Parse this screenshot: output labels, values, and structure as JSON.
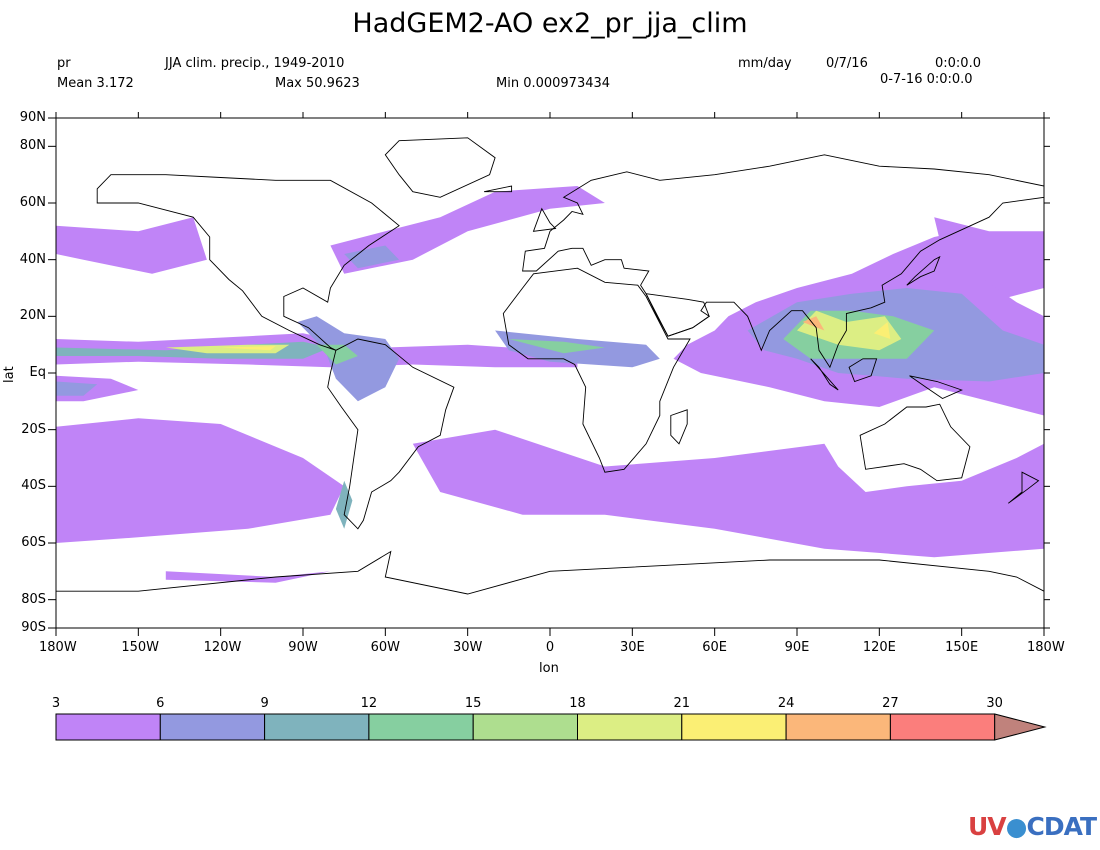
{
  "title": "HadGEM2-AO ex2_pr_jja_clim",
  "header": {
    "variable": "pr",
    "long_name": "JJA clim. precip., 1949-2010",
    "units": "mm/day",
    "date": "0/7/16",
    "time": "0:0:0.0",
    "date_time": "0-7-16 0:0:0.0",
    "mean": "Mean 3.172",
    "max": "Max 50.9623",
    "min": "Min 0.000973434"
  },
  "axes": {
    "xlabel": "lon",
    "ylabel": "lat",
    "x_ticks": [
      "180W",
      "150W",
      "120W",
      "90W",
      "60W",
      "30W",
      "0",
      "30E",
      "60E",
      "90E",
      "120E",
      "150E",
      "180W"
    ],
    "y_ticks": [
      "90N",
      "80N",
      "60N",
      "40N",
      "20N",
      "Eq",
      "20S",
      "40S",
      "60S",
      "80S",
      "90S"
    ]
  },
  "chart_data": {
    "type": "heatmap",
    "projection": "equirectangular",
    "xlim": [
      -180,
      180
    ],
    "ylim": [
      -90,
      90
    ],
    "levels": [
      3,
      6,
      9,
      12,
      15,
      18,
      21,
      24,
      27,
      30
    ],
    "level_labels": [
      "3",
      "6",
      "9",
      "12",
      "15",
      "18",
      "21",
      "24",
      "27",
      "30"
    ],
    "level_colors": [
      "#c084f7",
      "#9399e0",
      "#7fb3bd",
      "#86cfa0",
      "#aede8f",
      "#dcee84",
      "#fbef74",
      "#fbb77a",
      "#fb7e7c"
    ],
    "overflow_color": "#c0827c",
    "grid": false,
    "legend": "bottom"
  },
  "logo": {
    "text": "UV-CDAT"
  }
}
